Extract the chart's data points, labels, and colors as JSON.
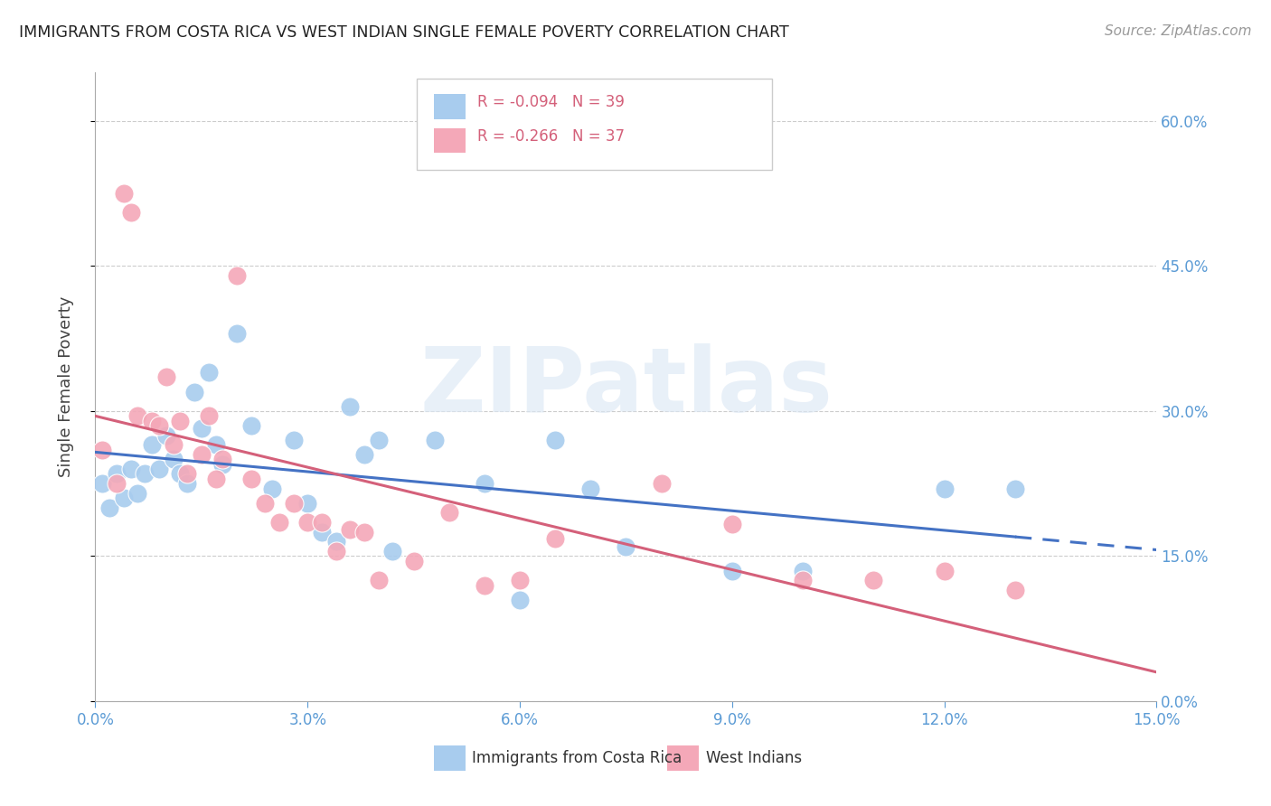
{
  "title": "IMMIGRANTS FROM COSTA RICA VS WEST INDIAN SINGLE FEMALE POVERTY CORRELATION CHART",
  "source": "Source: ZipAtlas.com",
  "ylabel": "Single Female Poverty",
  "xlim": [
    0.0,
    0.15
  ],
  "ylim": [
    0.0,
    0.65
  ],
  "legend_label1": "Immigrants from Costa Rica",
  "legend_label2": "West Indians",
  "R1": -0.094,
  "N1": 39,
  "R2": -0.266,
  "N2": 37,
  "color_blue": "#A8CCEE",
  "color_pink": "#F4A8B8",
  "line_blue": "#4472C4",
  "line_pink": "#D4607A",
  "watermark_color": "#DCE8F5",
  "blue_x": [
    0.001,
    0.002,
    0.003,
    0.004,
    0.005,
    0.006,
    0.007,
    0.008,
    0.009,
    0.01,
    0.011,
    0.012,
    0.013,
    0.014,
    0.015,
    0.016,
    0.017,
    0.018,
    0.02,
    0.022,
    0.025,
    0.028,
    0.03,
    0.032,
    0.034,
    0.036,
    0.038,
    0.04,
    0.042,
    0.048,
    0.055,
    0.06,
    0.065,
    0.07,
    0.075,
    0.09,
    0.1,
    0.12,
    0.13
  ],
  "blue_y": [
    0.225,
    0.2,
    0.235,
    0.21,
    0.24,
    0.215,
    0.235,
    0.265,
    0.24,
    0.275,
    0.25,
    0.235,
    0.225,
    0.32,
    0.282,
    0.34,
    0.265,
    0.245,
    0.38,
    0.285,
    0.22,
    0.27,
    0.205,
    0.175,
    0.165,
    0.305,
    0.255,
    0.27,
    0.155,
    0.27,
    0.225,
    0.105,
    0.27,
    0.22,
    0.16,
    0.135,
    0.135,
    0.22,
    0.22
  ],
  "pink_x": [
    0.001,
    0.003,
    0.004,
    0.005,
    0.006,
    0.008,
    0.009,
    0.01,
    0.011,
    0.012,
    0.013,
    0.015,
    0.016,
    0.017,
    0.018,
    0.02,
    0.022,
    0.024,
    0.026,
    0.028,
    0.03,
    0.032,
    0.034,
    0.036,
    0.038,
    0.04,
    0.045,
    0.05,
    0.055,
    0.06,
    0.065,
    0.08,
    0.09,
    0.1,
    0.11,
    0.12,
    0.13
  ],
  "pink_y": [
    0.26,
    0.225,
    0.525,
    0.505,
    0.295,
    0.29,
    0.285,
    0.335,
    0.265,
    0.29,
    0.235,
    0.255,
    0.295,
    0.23,
    0.25,
    0.44,
    0.23,
    0.205,
    0.185,
    0.205,
    0.185,
    0.185,
    0.155,
    0.178,
    0.175,
    0.125,
    0.145,
    0.195,
    0.12,
    0.125,
    0.168,
    0.225,
    0.183,
    0.125,
    0.125,
    0.135,
    0.115
  ]
}
